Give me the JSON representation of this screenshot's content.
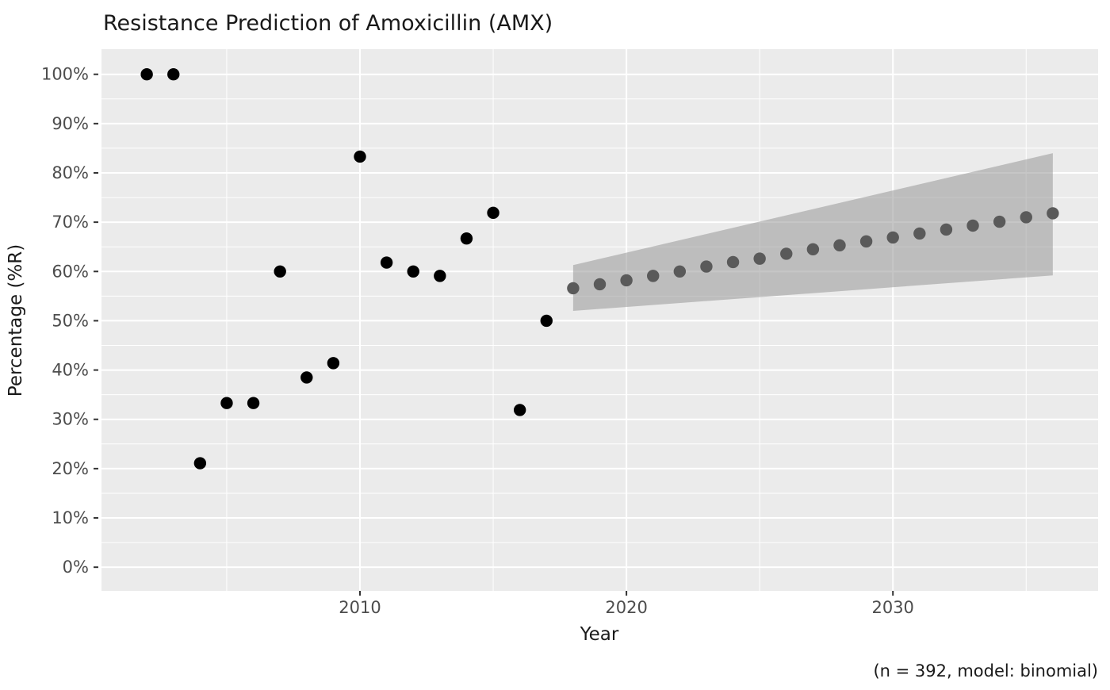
{
  "page": {
    "background": "#ffffff"
  },
  "chart": {
    "title": "Resistance Prediction of Amoxicillin (AMX)",
    "xlabel": "Year",
    "ylabel": "Percentage (%R)",
    "caption": "(n = 392, model: binomial)"
  },
  "chart_data": {
    "type": "scatter",
    "title": "Resistance Prediction of Amoxicillin (AMX)",
    "xlabel": "Year",
    "ylabel": "Percentage (%R)",
    "caption": "(n = 392, model: binomial)",
    "grid": true,
    "legend": "none",
    "panel_bg": "#EBEBEB",
    "grid_color": "#FFFFFF",
    "tick_mark_color": "#333333",
    "tick_label_color": "#4D4D4D",
    "xlim": [
      2000.3,
      2037.7
    ],
    "ylim": [
      -4.8,
      105.1
    ],
    "x_ticks": {
      "values": [
        2010,
        2020,
        2030
      ],
      "labels": [
        "2010",
        "2020",
        "2030"
      ]
    },
    "x_minor_ticks": [
      2005,
      2015,
      2025,
      2035
    ],
    "y_ticks": {
      "values": [
        0,
        10,
        20,
        30,
        40,
        50,
        60,
        70,
        80,
        90,
        100
      ],
      "labels": [
        "0%",
        "10%",
        "20%",
        "30%",
        "40%",
        "50%",
        "60%",
        "70%",
        "80%",
        "90%",
        "100%"
      ]
    },
    "y_minor_ticks": [
      5,
      15,
      25,
      35,
      45,
      55,
      65,
      75,
      85,
      95
    ],
    "series": [
      {
        "name": "observed",
        "marker": "circle",
        "color": "#000000",
        "x": [
          2002,
          2003,
          2004,
          2005,
          2006,
          2007,
          2008,
          2009,
          2010,
          2011,
          2012,
          2013,
          2014,
          2015,
          2016,
          2017
        ],
        "y": [
          100,
          100,
          21.1,
          33.3,
          33.3,
          60.0,
          38.5,
          41.4,
          83.3,
          61.8,
          60.0,
          59.1,
          66.7,
          71.9,
          31.9,
          50.0
        ]
      },
      {
        "name": "predicted",
        "marker": "circle",
        "color": "#5A5A5A",
        "x": [
          2018,
          2019,
          2020,
          2021,
          2022,
          2023,
          2024,
          2025,
          2026,
          2027,
          2028,
          2029,
          2030,
          2031,
          2032,
          2033,
          2034,
          2035,
          2036
        ],
        "y": [
          56.6,
          57.4,
          58.2,
          59.1,
          60.0,
          61.0,
          61.9,
          62.6,
          63.6,
          64.5,
          65.3,
          66.1,
          66.9,
          67.7,
          68.5,
          69.3,
          70.1,
          71.0,
          71.8
        ]
      }
    ],
    "ribbon": {
      "name": "confidence-interval",
      "color": "#999999",
      "opacity": 0.56,
      "x": [
        2018,
        2036
      ],
      "lower": [
        52.0,
        59.2
      ],
      "upper": [
        61.3,
        84.0
      ]
    }
  }
}
